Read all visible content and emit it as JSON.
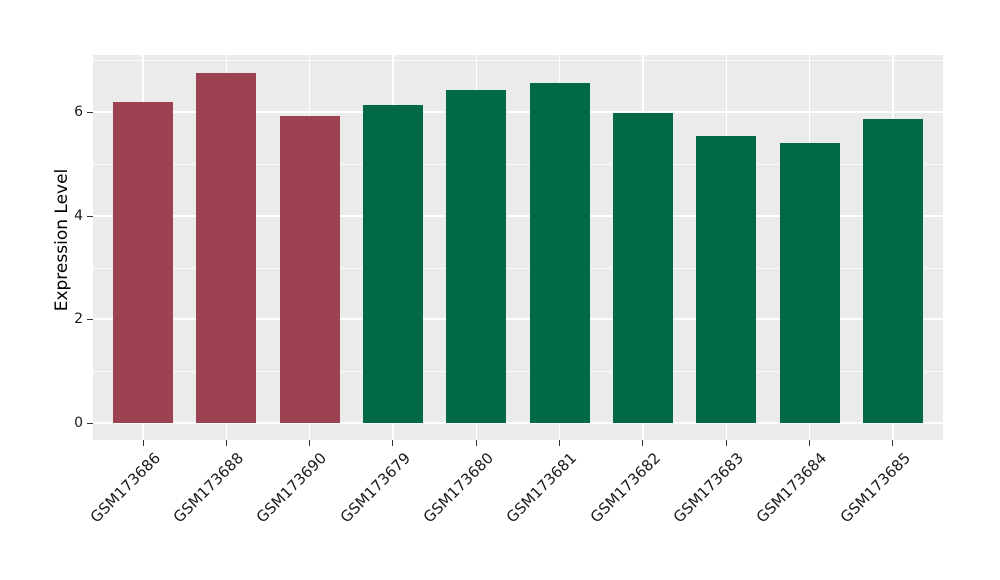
{
  "chart_data": {
    "type": "bar",
    "title": "",
    "xlabel": "",
    "ylabel": "Expression Level",
    "categories": [
      "GSM173686",
      "GSM173688",
      "GSM173690",
      "GSM173679",
      "GSM173680",
      "GSM173681",
      "GSM173682",
      "GSM173683",
      "GSM173684",
      "GSM173685"
    ],
    "values": [
      6.2,
      6.75,
      5.92,
      6.14,
      6.43,
      6.56,
      5.98,
      5.54,
      5.4,
      5.87
    ],
    "bar_colors": [
      "#9D4251",
      "#9D4251",
      "#9D4251",
      "#016946",
      "#016946",
      "#016946",
      "#016946",
      "#016946",
      "#016946",
      "#016946"
    ],
    "group_colors": {
      "left-group": "#9D4251",
      "right-group": "#016946"
    },
    "yticks": [
      "0",
      "2",
      "4",
      "6"
    ],
    "ytick_values": [
      0,
      2,
      4,
      6
    ],
    "minor_ytick_values": [
      1,
      3,
      5,
      7
    ],
    "ylim": [
      -0.34,
      7.1
    ],
    "xtick_angle_deg": 45,
    "grid": true,
    "legend_position": "none",
    "panel_bg": "#EBEBEB",
    "grid_color": "#FFFFFF",
    "tick_color": "#333333"
  }
}
